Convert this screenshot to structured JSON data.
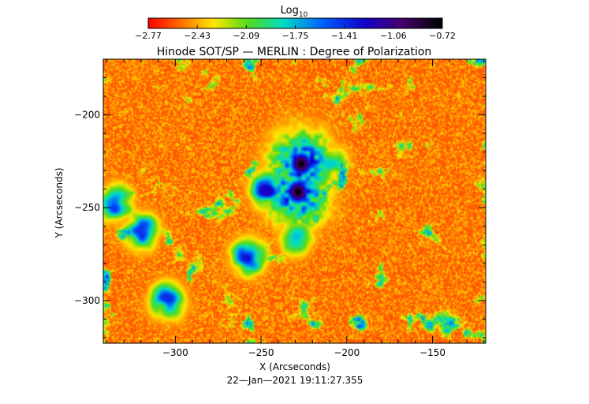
{
  "chart_data": {
    "type": "heatmap",
    "title": "Hinode SOT/SP — MERLIN : Degree of Polarization",
    "colorbar": {
      "label_base": "Log",
      "label_sub": "10",
      "colormap": "rainbow (red → yellow → green → cyan → blue → violet → black)",
      "range": [
        -2.77,
        -0.72
      ],
      "tick_labels": [
        "−2.77",
        "−2.43",
        "−2.09",
        "−1.75",
        "−1.41",
        "−1.06",
        "−0.72"
      ]
    },
    "xlabel": "X (Arcseconds)",
    "ylabel": "Y (Arcseconds)",
    "xlim": [
      -342,
      -119
    ],
    "ylim": [
      -323,
      -170
    ],
    "x_ticks": [
      -300,
      -250,
      -200,
      -150
    ],
    "x_tick_labels": [
      "−300",
      "−250",
      "−200",
      "−150"
    ],
    "y_ticks": [
      -200,
      -250,
      -300
    ],
    "y_tick_labels": [
      "−200",
      "−250",
      "−300"
    ],
    "background_level": -2.6,
    "features": [
      {
        "kind": "umbra",
        "x": -227,
        "y": -226,
        "level": -0.72
      },
      {
        "kind": "umbra",
        "x": -229,
        "y": -241,
        "level": -0.72
      },
      {
        "kind": "strong network patch",
        "x": -247,
        "y": -240,
        "level": -1.25
      },
      {
        "kind": "strong network patch",
        "x": -258,
        "y": -276,
        "level": -1.3
      },
      {
        "kind": "strong network patch",
        "x": -320,
        "y": -262,
        "level": -1.4
      },
      {
        "kind": "strong network patch",
        "x": -335,
        "y": -247,
        "level": -1.45
      },
      {
        "kind": "strong network patch",
        "x": -305,
        "y": -300,
        "level": -1.4
      },
      {
        "kind": "strong network patch",
        "x": -230,
        "y": -265,
        "level": -1.7
      },
      {
        "kind": "strong network patch",
        "x": -210,
        "y": -225,
        "level": -1.8
      }
    ],
    "timestamp": "22—Jan—2021 19:11:27.355"
  }
}
